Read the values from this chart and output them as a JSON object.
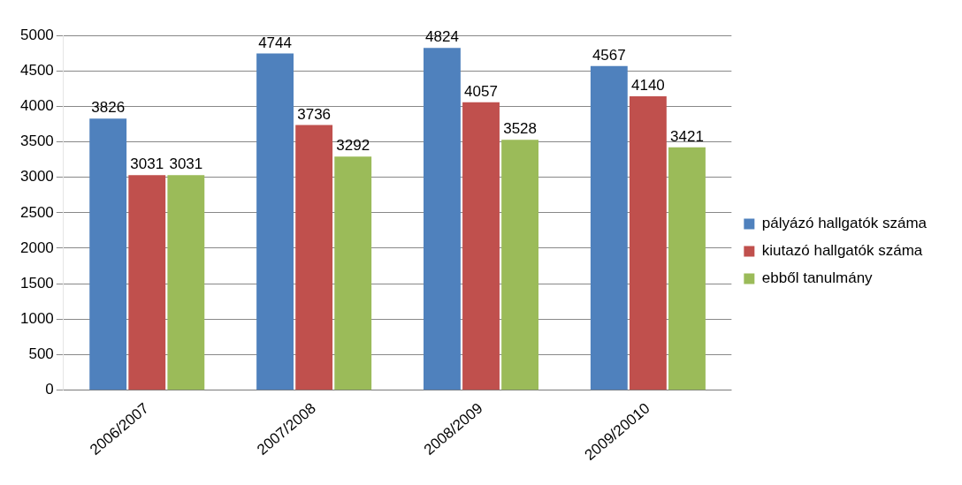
{
  "chart_data": {
    "type": "bar",
    "categories": [
      "2006/2007",
      "2007/2008",
      "2008/2009",
      "2009/20010"
    ],
    "series": [
      {
        "name": "pályázó hallgatók száma",
        "color": "#4f81bd",
        "values": [
          3826,
          4744,
          4824,
          4567
        ]
      },
      {
        "name": "kiutazó hallgatók száma",
        "color": "#c0504d",
        "values": [
          3031,
          3736,
          4057,
          4140
        ]
      },
      {
        "name": "ebből tanulmány",
        "color": "#9bbb59",
        "values": [
          3031,
          3292,
          3528,
          3421
        ]
      }
    ],
    "ylim": [
      0,
      5000
    ],
    "yticks": [
      0,
      500,
      1000,
      1500,
      2000,
      2500,
      3000,
      3500,
      4000,
      4500,
      5000
    ],
    "grid": "y",
    "legend": "right",
    "data_labels": true
  }
}
